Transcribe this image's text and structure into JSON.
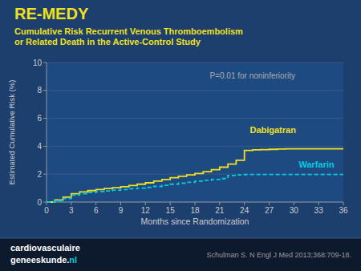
{
  "chart_data": {
    "type": "step",
    "title": "RE-MEDY",
    "subtitle": "Cumulative Risk Recurrent Venous Thromboembolism\nor Related Death in the Active-Control Study",
    "x_label": "Months since Randomization",
    "y_label": "Estimated Cumulative Risk (%)",
    "annotation": "P=0.01 for noninferiority",
    "brand": [
      "cardiovasculaire",
      "geneeskunde.",
      "nl"
    ],
    "source": "Schulman S. N Engl J Med 2013;368:709-18.",
    "xlim": [
      0,
      36
    ],
    "ylim": [
      0,
      10
    ],
    "xticks": [
      0,
      3,
      6,
      9,
      12,
      15,
      18,
      21,
      24,
      27,
      30,
      33,
      36
    ],
    "yticks": [
      0,
      2,
      4,
      6,
      8,
      10
    ],
    "grid": true,
    "x": [
      0,
      1,
      2,
      3,
      4,
      5,
      6,
      7,
      8,
      9,
      10,
      11,
      12,
      13,
      14,
      15,
      16,
      17,
      18,
      19,
      20,
      21,
      22,
      23,
      24,
      25,
      26,
      27,
      28,
      29,
      30,
      31,
      32,
      33,
      34,
      35,
      36
    ],
    "series": [
      {
        "name": "Dabigatran",
        "color": "#f0e020",
        "line_style": "solid",
        "values": [
          0,
          0.15,
          0.35,
          0.6,
          0.72,
          0.82,
          0.9,
          0.97,
          1.03,
          1.1,
          1.18,
          1.28,
          1.38,
          1.5,
          1.62,
          1.75,
          1.85,
          1.95,
          2.05,
          2.18,
          2.32,
          2.5,
          2.72,
          3.0,
          3.7,
          3.74,
          3.76,
          3.78,
          3.8,
          3.81,
          3.82,
          3.82,
          3.82,
          3.82,
          3.82,
          3.82,
          3.82
        ]
      },
      {
        "name": "Warfarin",
        "color": "#00ccdd",
        "line_style": "dashed",
        "values": [
          0,
          0.1,
          0.25,
          0.5,
          0.6,
          0.68,
          0.75,
          0.8,
          0.85,
          0.9,
          0.95,
          1.0,
          1.05,
          1.12,
          1.2,
          1.28,
          1.35,
          1.42,
          1.5,
          1.56,
          1.62,
          1.68,
          1.9,
          1.95,
          1.97,
          1.97,
          1.97,
          1.97,
          1.97,
          1.97,
          1.97,
          1.97,
          1.97,
          1.97,
          1.97,
          1.97,
          1.97
        ]
      }
    ]
  }
}
